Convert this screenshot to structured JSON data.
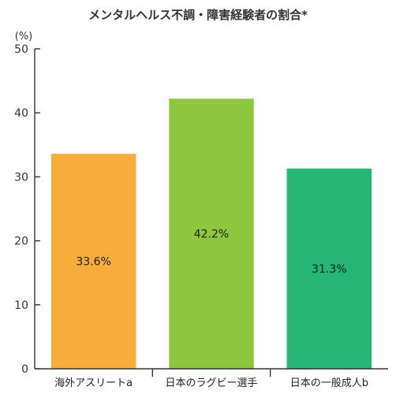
{
  "chart_data": {
    "type": "bar",
    "title": "メンタルヘルス不調・障害経験者の割合*",
    "unit_label": "(%)",
    "categories": [
      "海外アスリートa",
      "日本のラグビー選手",
      "日本の一般成人b"
    ],
    "values": [
      33.6,
      42.2,
      31.3
    ],
    "data_labels": [
      "33.6%",
      "42.2%",
      "31.3%"
    ],
    "colors": [
      "#F8AC3A",
      "#8DC63F",
      "#25B574"
    ],
    "ylim": [
      0,
      50
    ],
    "yticks": [
      0,
      10,
      20,
      30,
      40,
      50
    ],
    "grid": false,
    "legend": "none"
  }
}
